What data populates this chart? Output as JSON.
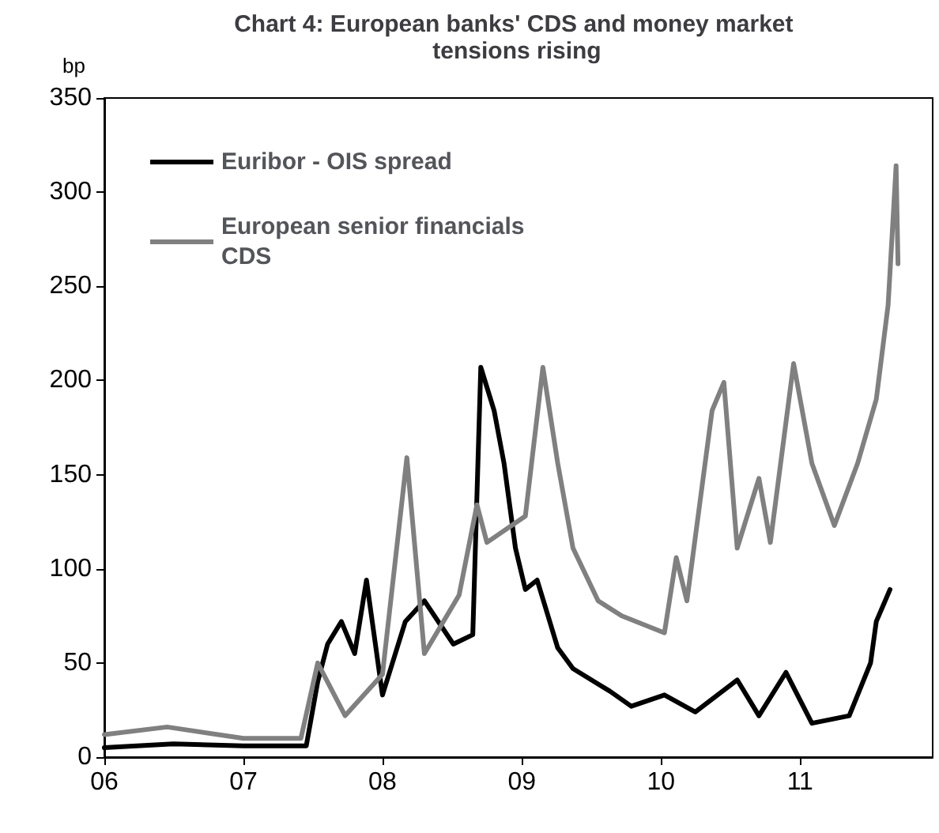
{
  "chart_data": {
    "type": "line",
    "title": "Chart 4: European banks' CDS and money market tensions rising",
    "ylabel": "bp",
    "xlim": [
      "2006-01-01",
      "2011-12-15"
    ],
    "xticks": [
      {
        "value": "2006-01-01",
        "label": "06"
      },
      {
        "value": "2007-01-01",
        "label": "07"
      },
      {
        "value": "2008-01-01",
        "label": "08"
      },
      {
        "value": "2009-01-01",
        "label": "09"
      },
      {
        "value": "2010-01-01",
        "label": "10"
      },
      {
        "value": "2011-01-01",
        "label": "11"
      }
    ],
    "ylim": [
      0,
      350
    ],
    "yticks": [
      0,
      50,
      100,
      150,
      200,
      250,
      300,
      350
    ],
    "grid": false,
    "legend": "top left",
    "marker": "none",
    "line_style": "solid",
    "series": [
      {
        "name": "Euribor - OIS spread",
        "color": "#000000",
        "x": [
          "2006-01-01",
          "2006-07-01",
          "2007-01-01",
          "2007-06-15",
          "2007-07-15",
          "2007-08-10",
          "2007-09-15",
          "2007-10-20",
          "2007-11-20",
          "2008-01-01",
          "2008-03-01",
          "2008-04-20",
          "2008-07-05",
          "2008-08-25",
          "2008-09-15",
          "2008-10-20",
          "2008-11-15",
          "2008-12-15",
          "2009-01-10",
          "2009-02-10",
          "2009-04-05",
          "2009-05-15",
          "2009-08-20",
          "2009-10-15",
          "2010-01-10",
          "2010-04-01",
          "2010-07-20",
          "2010-09-15",
          "2010-11-25",
          "2011-02-01",
          "2011-05-10",
          "2011-07-05",
          "2011-07-20",
          "2011-08-25"
        ],
        "values": [
          5,
          7,
          6,
          6,
          40,
          60,
          72,
          55,
          94,
          33,
          72,
          83,
          60,
          65,
          207,
          184,
          156,
          111,
          89,
          94,
          58,
          47,
          35,
          27,
          33,
          24,
          41,
          22,
          45,
          18,
          22,
          50,
          72,
          89
        ]
      },
      {
        "name": "European senior financials CDS",
        "color": "#808080",
        "x": [
          "2006-01-01",
          "2006-06-15",
          "2007-01-01",
          "2007-06-01",
          "2007-07-15",
          "2007-09-25",
          "2008-01-01",
          "2008-03-05",
          "2008-04-20",
          "2008-07-20",
          "2008-09-05",
          "2008-10-01",
          "2009-01-10",
          "2009-02-25",
          "2009-04-05",
          "2009-05-15",
          "2009-07-20",
          "2009-09-20",
          "2010-01-10",
          "2010-02-10",
          "2010-03-10",
          "2010-05-15",
          "2010-06-15",
          "2010-07-20",
          "2010-09-15",
          "2010-10-15",
          "2010-12-15",
          "2011-02-01",
          "2011-04-01",
          "2011-06-01",
          "2011-07-20",
          "2011-08-20",
          "2011-09-10",
          "2011-09-15"
        ],
        "values": [
          12,
          16,
          10,
          10,
          50,
          22,
          44,
          159,
          55,
          86,
          134,
          114,
          128,
          207,
          156,
          111,
          83,
          75,
          66,
          106,
          83,
          184,
          199,
          111,
          148,
          114,
          209,
          156,
          123,
          156,
          190,
          240,
          314,
          262
        ]
      }
    ]
  }
}
